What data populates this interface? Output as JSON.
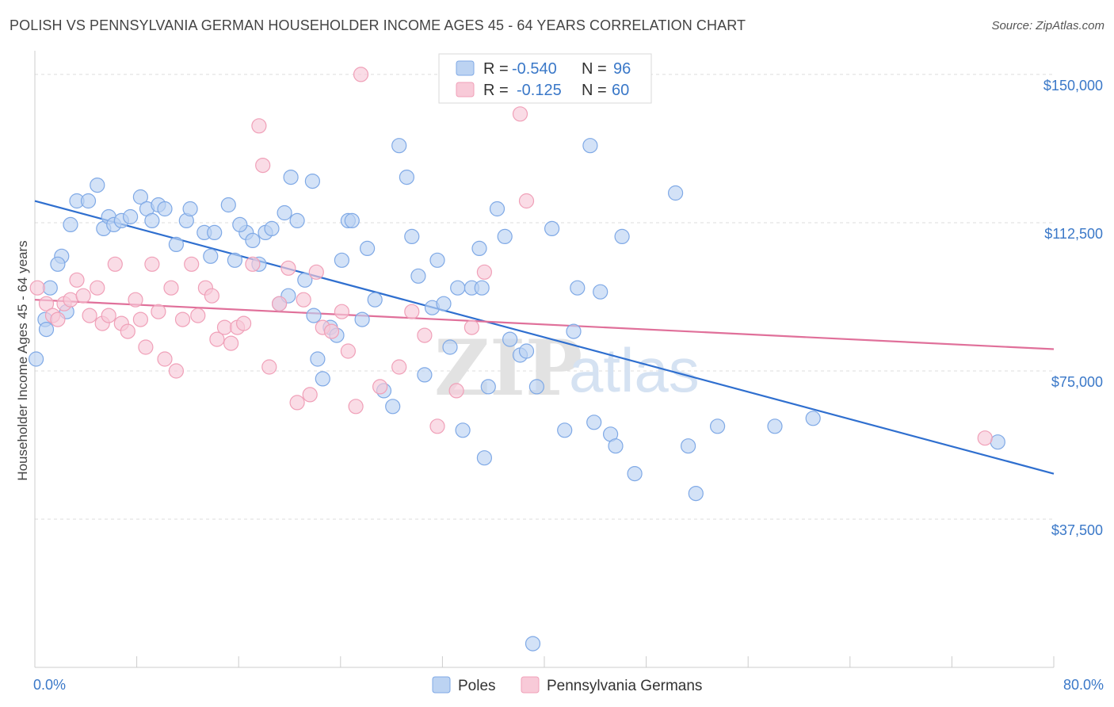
{
  "title": "POLISH VS PENNSYLVANIA GERMAN HOUSEHOLDER INCOME AGES 45 - 64 YEARS CORRELATION CHART",
  "source": "Source: ZipAtlas.com",
  "watermark": {
    "zip": "ZIP",
    "atlas": "atlas"
  },
  "chart_data": {
    "type": "scatter",
    "ylabel": "Householder Income Ages 45 - 64 years",
    "xlim": [
      0,
      80
    ],
    "ylim": [
      0,
      156000
    ],
    "x_tick_labels": [
      "0.0%",
      "80.0%"
    ],
    "y_ticks": [
      {
        "value": 150000,
        "label": "$150,000"
      },
      {
        "value": 112500,
        "label": "$112,500"
      },
      {
        "value": 75000,
        "label": "$75,000"
      },
      {
        "value": 37500,
        "label": "$37,500"
      }
    ],
    "grid": true,
    "legend_position": "bottom-center",
    "stats": [
      {
        "r_label": "R =",
        "r": "-0.540",
        "n_label": "N =",
        "n": "96",
        "color": "#7fa9e6"
      },
      {
        "r_label": "R =",
        "r": "-0.125",
        "n_label": "N =",
        "n": "60",
        "color": "#f0a0b8"
      }
    ],
    "series": [
      {
        "name": "Poles",
        "color": "#7fa9e6",
        "fill": "#bcd3f2",
        "line_color": "#2f6fcf",
        "trend": {
          "x": [
            0,
            80
          ],
          "y": [
            118000,
            49000
          ]
        },
        "points": [
          [
            0.1,
            78000
          ],
          [
            0.8,
            88000
          ],
          [
            1.2,
            96000
          ],
          [
            2.1,
            104000
          ],
          [
            1.8,
            102000
          ],
          [
            2.8,
            112000
          ],
          [
            3.3,
            118000
          ],
          [
            4.2,
            118000
          ],
          [
            4.9,
            122000
          ],
          [
            5.4,
            111000
          ],
          [
            5.8,
            114000
          ],
          [
            6.2,
            112000
          ],
          [
            6.8,
            113000
          ],
          [
            7.5,
            114000
          ],
          [
            8.3,
            119000
          ],
          [
            8.8,
            116000
          ],
          [
            9.7,
            117000
          ],
          [
            9.2,
            113000
          ],
          [
            10.2,
            116000
          ],
          [
            11.1,
            107000
          ],
          [
            11.9,
            113000
          ],
          [
            12.2,
            116000
          ],
          [
            13.3,
            110000
          ],
          [
            13.8,
            104000
          ],
          [
            14.1,
            110000
          ],
          [
            15.2,
            117000
          ],
          [
            15.7,
            103000
          ],
          [
            16.6,
            110000
          ],
          [
            16.1,
            112000
          ],
          [
            17.1,
            108000
          ],
          [
            17.6,
            102000
          ],
          [
            18.1,
            110000
          ],
          [
            18.6,
            111000
          ],
          [
            19.2,
            92000
          ],
          [
            19.6,
            115000
          ],
          [
            20.1,
            124000
          ],
          [
            20.6,
            113000
          ],
          [
            19.9,
            94000
          ],
          [
            21.2,
            98000
          ],
          [
            21.9,
            89000
          ],
          [
            22.2,
            78000
          ],
          [
            22.6,
            73000
          ],
          [
            21.8,
            123000
          ],
          [
            23.2,
            86000
          ],
          [
            23.7,
            84000
          ],
          [
            24.1,
            103000
          ],
          [
            24.6,
            113000
          ],
          [
            24.9,
            113000
          ],
          [
            25.7,
            88000
          ],
          [
            26.1,
            106000
          ],
          [
            26.7,
            93000
          ],
          [
            27.4,
            70000
          ],
          [
            28.1,
            66000
          ],
          [
            28.6,
            132000
          ],
          [
            29.2,
            124000
          ],
          [
            29.6,
            109000
          ],
          [
            30.1,
            99000
          ],
          [
            30.6,
            74000
          ],
          [
            31.2,
            91000
          ],
          [
            31.6,
            103000
          ],
          [
            32.1,
            92000
          ],
          [
            32.6,
            81000
          ],
          [
            33.2,
            96000
          ],
          [
            33.6,
            60000
          ],
          [
            34.3,
            96000
          ],
          [
            34.9,
            106000
          ],
          [
            35.1,
            96000
          ],
          [
            35.6,
            71000
          ],
          [
            35.3,
            53000
          ],
          [
            36.3,
            116000
          ],
          [
            36.9,
            109000
          ],
          [
            37.3,
            83000
          ],
          [
            38.1,
            79000
          ],
          [
            38.6,
            80000
          ],
          [
            39.4,
            71000
          ],
          [
            39.1,
            6000
          ],
          [
            40.6,
            111000
          ],
          [
            41.6,
            60000
          ],
          [
            42.3,
            85000
          ],
          [
            42.6,
            96000
          ],
          [
            43.6,
            132000
          ],
          [
            43.9,
            62000
          ],
          [
            45.2,
            59000
          ],
          [
            45.6,
            56000
          ],
          [
            46.1,
            109000
          ],
          [
            47.1,
            49000
          ],
          [
            50.3,
            120000
          ],
          [
            51.3,
            56000
          ],
          [
            51.9,
            44000
          ],
          [
            53.6,
            61000
          ],
          [
            58.1,
            61000
          ],
          [
            61.1,
            63000
          ],
          [
            75.6,
            57000
          ],
          [
            0.9,
            85500
          ],
          [
            2.5,
            90000
          ],
          [
            44.4,
            95000
          ]
        ]
      },
      {
        "name": "Pennsylvania Germans",
        "color": "#f0a0b8",
        "fill": "#f8cad8",
        "line_color": "#e0709a",
        "trend": {
          "x": [
            0,
            80
          ],
          "y": [
            93000,
            80500
          ]
        },
        "points": [
          [
            0.2,
            96000
          ],
          [
            0.9,
            92000
          ],
          [
            1.4,
            89000
          ],
          [
            1.8,
            88000
          ],
          [
            2.3,
            92000
          ],
          [
            2.8,
            93000
          ],
          [
            3.3,
            98000
          ],
          [
            3.8,
            94000
          ],
          [
            4.3,
            89000
          ],
          [
            4.9,
            96000
          ],
          [
            5.3,
            87000
          ],
          [
            5.8,
            89000
          ],
          [
            6.3,
            102000
          ],
          [
            6.8,
            87000
          ],
          [
            7.3,
            85000
          ],
          [
            7.9,
            93000
          ],
          [
            8.3,
            88000
          ],
          [
            8.7,
            81000
          ],
          [
            9.2,
            102000
          ],
          [
            9.7,
            90000
          ],
          [
            10.2,
            78000
          ],
          [
            10.7,
            96000
          ],
          [
            11.1,
            75000
          ],
          [
            11.6,
            88000
          ],
          [
            12.3,
            102000
          ],
          [
            12.8,
            89000
          ],
          [
            13.4,
            96000
          ],
          [
            13.9,
            94000
          ],
          [
            14.3,
            83000
          ],
          [
            14.9,
            86000
          ],
          [
            15.4,
            82000
          ],
          [
            15.9,
            86000
          ],
          [
            16.4,
            87000
          ],
          [
            17.1,
            102000
          ],
          [
            17.6,
            137000
          ],
          [
            17.9,
            127000
          ],
          [
            18.4,
            76000
          ],
          [
            19.2,
            92000
          ],
          [
            19.9,
            101000
          ],
          [
            20.6,
            67000
          ],
          [
            21.1,
            93000
          ],
          [
            21.6,
            69000
          ],
          [
            22.1,
            100000
          ],
          [
            22.6,
            86000
          ],
          [
            23.3,
            85000
          ],
          [
            24.1,
            90000
          ],
          [
            24.6,
            80000
          ],
          [
            25.6,
            150000
          ],
          [
            25.2,
            66000
          ],
          [
            27.1,
            71000
          ],
          [
            28.6,
            76000
          ],
          [
            29.6,
            90000
          ],
          [
            30.6,
            84000
          ],
          [
            31.6,
            61000
          ],
          [
            33.1,
            70000
          ],
          [
            34.3,
            86000
          ],
          [
            38.1,
            140000
          ],
          [
            38.6,
            118000
          ],
          [
            35.3,
            100000
          ],
          [
            74.6,
            58000
          ]
        ]
      }
    ]
  }
}
